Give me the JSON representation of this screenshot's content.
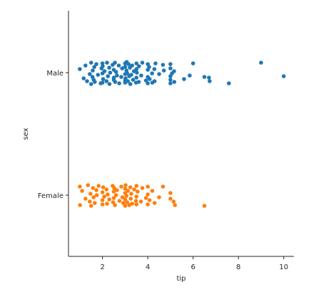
{
  "chart_data": {
    "type": "scatter",
    "subtype": "stripplot",
    "orientation": "horizontal",
    "xlabel": "tip",
    "ylabel": "sex",
    "xlim": [
      0.5,
      10.45
    ],
    "xticks": [
      2,
      4,
      6,
      8,
      10
    ],
    "xtick_labels": [
      "2",
      "4",
      "6",
      "8",
      "10"
    ],
    "categories": [
      "Male",
      "Female"
    ],
    "grid": false,
    "legend": "none",
    "series": [
      {
        "category": "Male",
        "color": "#1f77b4",
        "points": [
          [
            1.0,
            -0.05
          ],
          [
            1.17,
            0.08
          ],
          [
            1.25,
            -0.1
          ],
          [
            1.32,
            0.12
          ],
          [
            1.44,
            0.02
          ],
          [
            1.5,
            -0.14
          ],
          [
            1.5,
            0.16
          ],
          [
            1.56,
            0.06
          ],
          [
            1.57,
            -0.03
          ],
          [
            1.61,
            0.1
          ],
          [
            1.64,
            -0.08
          ],
          [
            1.66,
            0.13
          ],
          [
            1.73,
            -0.12
          ],
          [
            1.8,
            0.03
          ],
          [
            1.92,
            0.15
          ],
          [
            1.96,
            -0.06
          ],
          [
            2.0,
            0.01
          ],
          [
            2.0,
            -0.13
          ],
          [
            2.0,
            0.14
          ],
          [
            2.01,
            -0.09
          ],
          [
            2.03,
            0.09
          ],
          [
            2.09,
            -0.02
          ],
          [
            2.18,
            0.12
          ],
          [
            2.2,
            -0.14
          ],
          [
            2.24,
            0.05
          ],
          [
            2.3,
            -0.07
          ],
          [
            2.31,
            0.16
          ],
          [
            2.34,
            0.0
          ],
          [
            2.45,
            -0.11
          ],
          [
            2.5,
            0.1
          ],
          [
            2.5,
            -0.04
          ],
          [
            2.5,
            0.07
          ],
          [
            2.55,
            -0.14
          ],
          [
            2.56,
            0.13
          ],
          [
            2.6,
            -0.01
          ],
          [
            2.64,
            0.04
          ],
          [
            2.72,
            -0.1
          ],
          [
            2.74,
            0.15
          ],
          [
            2.83,
            0.06
          ],
          [
            2.87,
            -0.06
          ],
          [
            3.0,
            0.11
          ],
          [
            3.0,
            -0.13
          ],
          [
            3.0,
            0.02
          ],
          [
            3.0,
            -0.08
          ],
          [
            3.0,
            0.14
          ],
          [
            3.02,
            0.08
          ],
          [
            3.06,
            -0.03
          ],
          [
            3.07,
            -0.15
          ],
          [
            3.09,
            0.01
          ],
          [
            3.12,
            0.12
          ],
          [
            3.15,
            -0.12
          ],
          [
            3.18,
            0.05
          ],
          [
            3.21,
            -0.07
          ],
          [
            3.23,
            0.16
          ],
          [
            3.27,
            0.03
          ],
          [
            3.31,
            -0.1
          ],
          [
            3.35,
            0.1
          ],
          [
            3.39,
            -0.02
          ],
          [
            3.48,
            0.14
          ],
          [
            3.5,
            -0.13
          ],
          [
            3.5,
            0.07
          ],
          [
            3.5,
            -0.05
          ],
          [
            3.52,
            0.0
          ],
          [
            3.6,
            0.13
          ],
          [
            3.61,
            -0.09
          ],
          [
            3.71,
            0.04
          ],
          [
            3.76,
            -0.14
          ],
          [
            3.92,
            0.11
          ],
          [
            4.0,
            -0.04
          ],
          [
            4.0,
            0.15
          ],
          [
            4.0,
            -0.12
          ],
          [
            4.0,
            0.06
          ],
          [
            4.06,
            -0.08
          ],
          [
            4.08,
            0.09
          ],
          [
            4.19,
            0.01
          ],
          [
            4.2,
            0.14
          ],
          [
            4.29,
            -0.05
          ],
          [
            4.3,
            0.12
          ],
          [
            4.34,
            -0.13
          ],
          [
            4.5,
            0.02
          ],
          [
            4.67,
            -0.11
          ],
          [
            4.71,
            -0.03
          ],
          [
            5.0,
            0.1
          ],
          [
            5.0,
            -0.06
          ],
          [
            5.0,
            0.05
          ],
          [
            5.0,
            -0.12
          ],
          [
            5.0,
            0.15
          ],
          [
            5.07,
            0.01
          ],
          [
            5.16,
            -0.02
          ],
          [
            5.17,
            0.13
          ],
          [
            5.6,
            0.09
          ],
          [
            5.85,
            0.04
          ],
          [
            6.0,
            -0.13
          ],
          [
            6.5,
            0.06
          ],
          [
            6.7,
            0.07
          ],
          [
            6.73,
            0.12
          ],
          [
            7.58,
            0.15
          ],
          [
            9.0,
            -0.14
          ],
          [
            10.0,
            0.05
          ]
        ]
      },
      {
        "category": "Female",
        "color": "#ff7f0e",
        "points": [
          [
            1.0,
            -0.12
          ],
          [
            1.01,
            0.14
          ],
          [
            1.1,
            -0.06
          ],
          [
            1.25,
            0.05
          ],
          [
            1.36,
            -0.14
          ],
          [
            1.44,
            0.09
          ],
          [
            1.47,
            -0.02
          ],
          [
            1.5,
            0.15
          ],
          [
            1.58,
            -0.1
          ],
          [
            1.61,
            0.03
          ],
          [
            1.66,
            0.11
          ],
          [
            1.73,
            -0.07
          ],
          [
            1.75,
            0.0
          ],
          [
            1.83,
            -0.13
          ],
          [
            2.0,
            0.13
          ],
          [
            2.0,
            -0.04
          ],
          [
            2.0,
            0.07
          ],
          [
            2.03,
            -0.11
          ],
          [
            2.08,
            0.02
          ],
          [
            2.18,
            -0.08
          ],
          [
            2.2,
            0.12
          ],
          [
            2.23,
            -0.01
          ],
          [
            2.3,
            0.06
          ],
          [
            2.45,
            -0.13
          ],
          [
            2.47,
            0.1
          ],
          [
            2.5,
            -0.05
          ],
          [
            2.5,
            0.04
          ],
          [
            2.52,
            -0.1
          ],
          [
            2.55,
            0.14
          ],
          [
            2.6,
            0.0
          ],
          [
            2.64,
            -0.07
          ],
          [
            2.75,
            0.08
          ],
          [
            2.83,
            -0.12
          ],
          [
            2.88,
            0.03
          ],
          [
            2.92,
            0.11
          ],
          [
            3.0,
            -0.03
          ],
          [
            3.0,
            0.15
          ],
          [
            3.0,
            -0.09
          ],
          [
            3.0,
            0.06
          ],
          [
            3.02,
            -0.14
          ],
          [
            3.06,
            0.01
          ],
          [
            3.09,
            0.1
          ],
          [
            3.12,
            -0.06
          ],
          [
            3.18,
            0.14
          ],
          [
            3.23,
            -0.11
          ],
          [
            3.25,
            0.05
          ],
          [
            3.27,
            -0.02
          ],
          [
            3.31,
            0.12
          ],
          [
            3.4,
            -0.08
          ],
          [
            3.48,
            0.08
          ],
          [
            3.5,
            -0.13
          ],
          [
            3.5,
            0.02
          ],
          [
            3.5,
            0.13
          ],
          [
            3.55,
            -0.05
          ],
          [
            3.7,
            0.09
          ],
          [
            3.76,
            -0.1
          ],
          [
            3.92,
            0.04
          ],
          [
            4.0,
            -0.12
          ],
          [
            4.0,
            0.13
          ],
          [
            4.0,
            -0.01
          ],
          [
            4.08,
            0.07
          ],
          [
            4.2,
            -0.06
          ],
          [
            4.3,
            0.11
          ],
          [
            4.5,
            0.03
          ],
          [
            4.67,
            -0.12
          ],
          [
            5.0,
            0.05
          ],
          [
            5.0,
            -0.03
          ],
          [
            5.14,
            0.09
          ],
          [
            5.2,
            0.14
          ],
          [
            6.5,
            0.15
          ]
        ]
      }
    ]
  }
}
